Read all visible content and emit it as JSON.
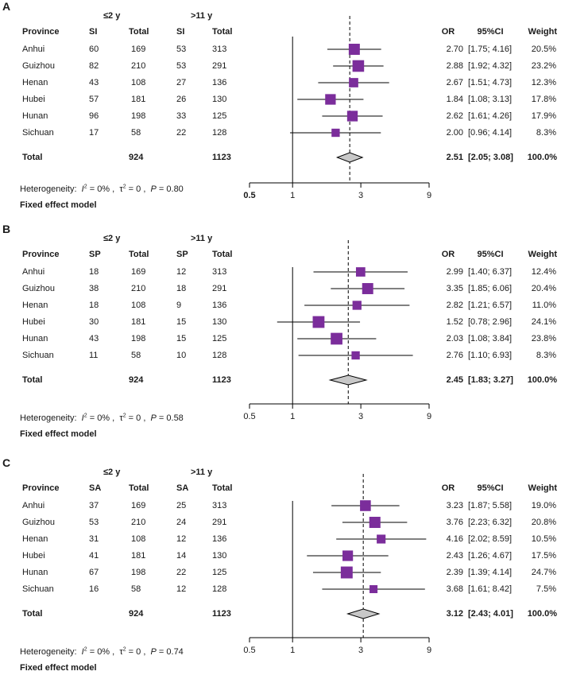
{
  "colors": {
    "marker": "#7b2d9b",
    "diamond": "#c8c8c8",
    "line": "#000000"
  },
  "common": {
    "group_left": "≤2 y",
    "group_right": ">11 y",
    "province_header": "Province",
    "total_header": "Total",
    "or_header": "OR",
    "ci_header": "95%CI",
    "weight_header": "Weight",
    "total_label": "Total",
    "het_prefix": "Heterogeneity:",
    "model_label": "Fixed effect model"
  },
  "panels": [
    {
      "label": "A",
      "measure": "SI",
      "total_left": "924",
      "total_right": "1123",
      "rows": [
        {
          "province": "Anhui",
          "n1": "60",
          "t1": "169",
          "n2": "53",
          "t2": "313",
          "or": "2.70",
          "ci": "[1.75; 4.16]",
          "weight": "20.5%"
        },
        {
          "province": "Guizhou",
          "n1": "82",
          "t1": "210",
          "n2": "53",
          "t2": "291",
          "or": "2.88",
          "ci": "[1.92; 4.32]",
          "weight": "23.2%"
        },
        {
          "province": "Henan",
          "n1": "43",
          "t1": "108",
          "n2": "27",
          "t2": "136",
          "or": "2.67",
          "ci": "[1.51; 4.73]",
          "weight": "12.3%"
        },
        {
          "province": "Hubei",
          "n1": "57",
          "t1": "181",
          "n2": "26",
          "t2": "130",
          "or": "1.84",
          "ci": "[1.08; 3.13]",
          "weight": "17.8%"
        },
        {
          "province": "Hunan",
          "n1": "96",
          "t1": "198",
          "n2": "33",
          "t2": "125",
          "or": "2.62",
          "ci": "[1.61; 4.26]",
          "weight": "17.9%"
        },
        {
          "province": "Sichuan",
          "n1": "17",
          "t1": "58",
          "n2": "22",
          "t2": "128",
          "or": "2.00",
          "ci": "[0.96; 4.14]",
          "weight": "8.3%"
        }
      ],
      "pooled": {
        "or": "2.51",
        "ci": "[2.05; 3.08]",
        "weight": "100.0%"
      },
      "het": {
        "i2": "0%",
        "tau2": "0",
        "p": "0.80"
      }
    },
    {
      "label": "B",
      "measure": "SP",
      "total_left": "924",
      "total_right": "1123",
      "rows": [
        {
          "province": "Anhui",
          "n1": "18",
          "t1": "169",
          "n2": "12",
          "t2": "313",
          "or": "2.99",
          "ci": "[1.40; 6.37]",
          "weight": "12.4%"
        },
        {
          "province": "Guizhou",
          "n1": "38",
          "t1": "210",
          "n2": "18",
          "t2": "291",
          "or": "3.35",
          "ci": "[1.85; 6.06]",
          "weight": "20.4%"
        },
        {
          "province": "Henan",
          "n1": "18",
          "t1": "108",
          "n2": "9",
          "t2": "136",
          "or": "2.82",
          "ci": "[1.21; 6.57]",
          "weight": "11.0%"
        },
        {
          "province": "Hubei",
          "n1": "30",
          "t1": "181",
          "n2": "15",
          "t2": "130",
          "or": "1.52",
          "ci": "[0.78; 2.96]",
          "weight": "24.1%"
        },
        {
          "province": "Hunan",
          "n1": "43",
          "t1": "198",
          "n2": "15",
          "t2": "125",
          "or": "2.03",
          "ci": "[1.08; 3.84]",
          "weight": "23.8%"
        },
        {
          "province": "Sichuan",
          "n1": "11",
          "t1": "58",
          "n2": "10",
          "t2": "128",
          "or": "2.76",
          "ci": "[1.10; 6.93]",
          "weight": "8.3%"
        }
      ],
      "pooled": {
        "or": "2.45",
        "ci": "[1.83; 3.27]",
        "weight": "100.0%"
      },
      "het": {
        "i2": "0%",
        "tau2": "0",
        "p": "0.58"
      }
    },
    {
      "label": "C",
      "measure": "SA",
      "total_left": "924",
      "total_right": "1123",
      "rows": [
        {
          "province": "Anhui",
          "n1": "37",
          "t1": "169",
          "n2": "25",
          "t2": "313",
          "or": "3.23",
          "ci": "[1.87; 5.58]",
          "weight": "19.0%"
        },
        {
          "province": "Guizhou",
          "n1": "53",
          "t1": "210",
          "n2": "24",
          "t2": "291",
          "or": "3.76",
          "ci": "[2.23; 6.32]",
          "weight": "20.8%"
        },
        {
          "province": "Henan",
          "n1": "31",
          "t1": "108",
          "n2": "12",
          "t2": "136",
          "or": "4.16",
          "ci": "[2.02; 8.59]",
          "weight": "10.5%"
        },
        {
          "province": "Hubei",
          "n1": "41",
          "t1": "181",
          "n2": "14",
          "t2": "130",
          "or": "2.43",
          "ci": "[1.26; 4.67]",
          "weight": "17.5%"
        },
        {
          "province": "Hunan",
          "n1": "67",
          "t1": "198",
          "n2": "22",
          "t2": "125",
          "or": "2.39",
          "ci": "[1.39; 4.14]",
          "weight": "24.7%"
        },
        {
          "province": "Sichuan",
          "n1": "16",
          "t1": "58",
          "n2": "12",
          "t2": "128",
          "or": "3.68",
          "ci": "[1.61; 8.42]",
          "weight": "7.5%"
        }
      ],
      "pooled": {
        "or": "3.12",
        "ci": "[2.43; 4.01]",
        "weight": "100.0%"
      },
      "het": {
        "i2": "0%",
        "tau2": "0",
        "p": "0.74"
      }
    }
  ],
  "chart_data": [
    {
      "type": "forest",
      "title": "A",
      "x_scale": "log",
      "xlim": [
        0.5,
        9
      ],
      "xticks": [
        "0.5",
        "1",
        "3",
        "9"
      ],
      "reference_line": 1,
      "series": [
        {
          "name": "SI",
          "categories": [
            "Anhui",
            "Guizhou",
            "Henan",
            "Hubei",
            "Hunan",
            "Sichuan"
          ],
          "or": [
            2.7,
            2.88,
            2.67,
            1.84,
            2.62,
            2.0
          ],
          "lower": [
            1.75,
            1.92,
            1.51,
            1.08,
            1.61,
            0.96
          ],
          "upper": [
            4.16,
            4.32,
            4.73,
            3.13,
            4.26,
            4.14
          ],
          "weight": [
            20.5,
            23.2,
            12.3,
            17.8,
            17.9,
            8.3
          ]
        }
      ],
      "pooled": {
        "or": 2.51,
        "lower": 2.05,
        "upper": 3.08
      }
    },
    {
      "type": "forest",
      "title": "B",
      "x_scale": "log",
      "xlim": [
        0.5,
        9
      ],
      "xticks": [
        "0.5",
        "1",
        "3",
        "9"
      ],
      "reference_line": 1,
      "series": [
        {
          "name": "SP",
          "categories": [
            "Anhui",
            "Guizhou",
            "Henan",
            "Hubei",
            "Hunan",
            "Sichuan"
          ],
          "or": [
            2.99,
            3.35,
            2.82,
            1.52,
            2.03,
            2.76
          ],
          "lower": [
            1.4,
            1.85,
            1.21,
            0.78,
            1.08,
            1.1
          ],
          "upper": [
            6.37,
            6.06,
            6.57,
            2.96,
            3.84,
            6.93
          ],
          "weight": [
            12.4,
            20.4,
            11.0,
            24.1,
            23.8,
            8.3
          ]
        }
      ],
      "pooled": {
        "or": 2.45,
        "lower": 1.83,
        "upper": 3.27
      }
    },
    {
      "type": "forest",
      "title": "C",
      "x_scale": "log",
      "xlim": [
        0.5,
        9
      ],
      "xticks": [
        "0.5",
        "1",
        "3",
        "9"
      ],
      "reference_line": 1,
      "series": [
        {
          "name": "SA",
          "categories": [
            "Anhui",
            "Guizhou",
            "Henan",
            "Hubei",
            "Hunan",
            "Sichuan"
          ],
          "or": [
            3.23,
            3.76,
            4.16,
            2.43,
            2.39,
            3.68
          ],
          "lower": [
            1.87,
            2.23,
            2.02,
            1.26,
            1.39,
            1.61
          ],
          "upper": [
            5.58,
            6.32,
            8.59,
            4.67,
            4.14,
            8.42
          ],
          "weight": [
            19.0,
            20.8,
            10.5,
            17.5,
            24.7,
            7.5
          ]
        }
      ],
      "pooled": {
        "or": 3.12,
        "lower": 2.43,
        "upper": 4.01
      }
    }
  ]
}
